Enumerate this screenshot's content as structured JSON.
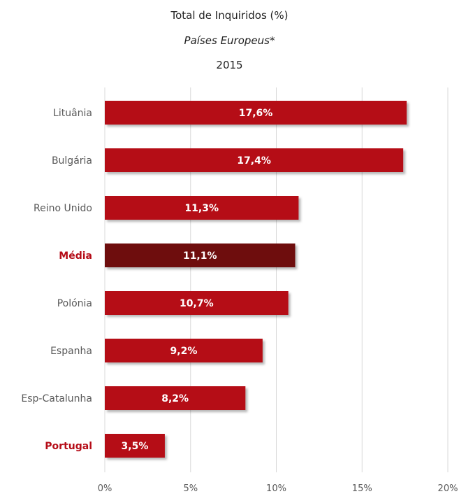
{
  "chart_data": {
    "type": "bar",
    "orientation": "horizontal",
    "title": "Total de Inquiridos (%)",
    "subtitle": "Países Europeus*",
    "year": "2015",
    "categories": [
      "Lituânia",
      "Bulgária",
      "Reino Unido",
      "Média",
      "Polónia",
      "Espanha",
      "Esp-Catalunha",
      "Portugal"
    ],
    "values": [
      17.6,
      17.4,
      11.3,
      11.1,
      10.7,
      9.2,
      8.2,
      3.5
    ],
    "data_labels": [
      "17,6%",
      "17,4%",
      "11,3%",
      "11,1%",
      "10,7%",
      "9,2%",
      "8,2%",
      "3,5%"
    ],
    "highlighted_categories": [
      "Média",
      "Portugal"
    ],
    "xlim": [
      0,
      20
    ],
    "xticks": [
      0,
      5,
      10,
      15,
      20
    ],
    "xtick_labels": [
      "0%",
      "5%",
      "10%",
      "15%",
      "20%"
    ],
    "grid": "vertical",
    "legend": "none",
    "colors": {
      "bar": "#B50C17",
      "bar_highlight": "#6E0710",
      "label_highlight": "#B50C17",
      "label": "#595959",
      "bar_text": "#ffffff",
      "grid": "#D9D9D9"
    }
  }
}
